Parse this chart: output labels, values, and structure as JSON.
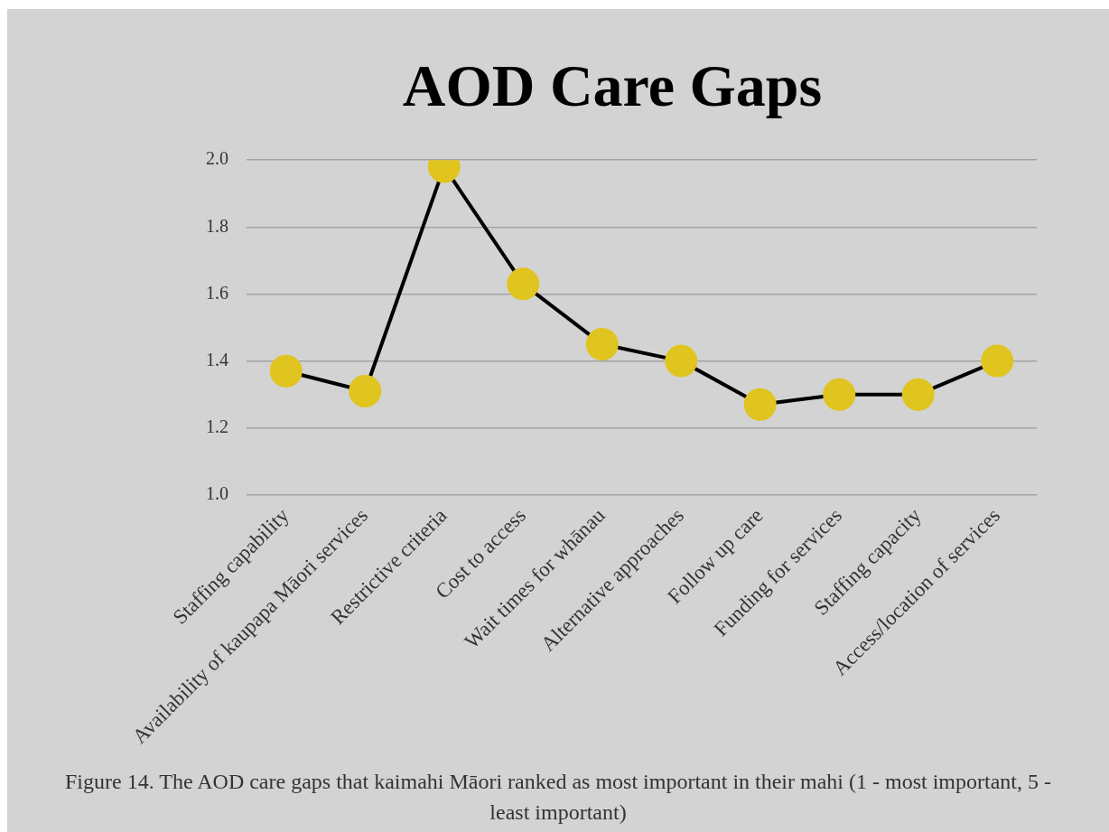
{
  "chart_data": {
    "type": "line",
    "title": "AOD Care Gaps",
    "categories": [
      "Staffing capability",
      "Availability of kaupapa Māori services",
      "Restrictive criteria",
      "Cost to access",
      "Wait times for whānau",
      "Alternative approaches",
      "Follow up care",
      "Funding for services",
      "Staffing capacity",
      "Access/location of services"
    ],
    "series": [
      {
        "color": "#e0c41f",
        "values": [
          1.37,
          1.31,
          1.98,
          1.63,
          1.45,
          1.4,
          1.27,
          1.3,
          1.3,
          1.4
        ]
      }
    ],
    "ylim": [
      1.0,
      2.0
    ],
    "yticks": [
      {
        "value": 1.0,
        "label": "1.0"
      },
      {
        "value": 1.2,
        "label": "1.2"
      },
      {
        "value": 1.4,
        "label": "1.4"
      },
      {
        "value": 1.6,
        "label": "1.6"
      },
      {
        "value": 1.8,
        "label": "1.8"
      },
      {
        "value": 2.0,
        "label": "2.0"
      }
    ],
    "grid": "y",
    "legend": false,
    "marker": "circle",
    "line_style": "solid",
    "annotations": [
      "Figure 14. The AOD care gaps that kaimahi Māori ranked as most important in their mahi (1 - most important, 5 - least important)"
    ]
  }
}
